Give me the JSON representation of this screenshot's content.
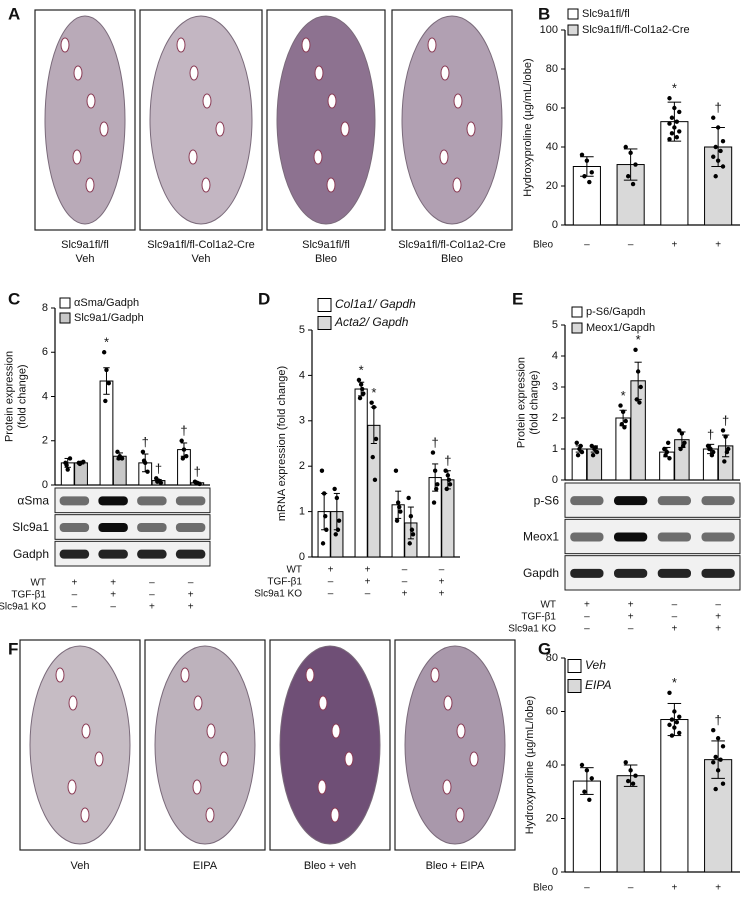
{
  "image_panels": [
    {
      "letter": "A",
      "captions": [
        [
          "Slc9a1fl/fl",
          "Veh"
        ],
        [
          "Slc9a1fl/fl-Col1a2-Cre",
          "Veh"
        ],
        [
          "Slc9a1fl/fl",
          "Bleo"
        ],
        [
          "Slc9a1fl/fl-Col1a2-Cre",
          "Bleo"
        ]
      ]
    },
    {
      "letter": "F",
      "captions": [
        [
          "Veh"
        ],
        [
          "EIPA"
        ],
        [
          "Bleo + veh"
        ],
        [
          "Bleo + EIPA"
        ]
      ]
    }
  ],
  "chart_data": [
    {
      "type": "bar",
      "panel": "B",
      "ylabel": [
        "Hydroxyproline (µg/mL/lobe)"
      ],
      "ylim": [
        0,
        100
      ],
      "yticks": [
        0,
        20,
        40,
        60,
        80,
        100
      ],
      "series": [
        {
          "name": "Slc9a1fl/fl",
          "color": "#ffffff",
          "values": [
            30,
            null,
            53,
            null
          ],
          "errors": [
            5,
            null,
            10,
            null
          ],
          "points": [
            [
              36,
              33,
              27,
              25,
              22
            ],
            null,
            [
              65,
              60,
              58,
              55,
              53,
              52,
              50,
              48,
              47,
              45,
              44
            ],
            null
          ],
          "markers": [
            null,
            null,
            "*",
            null
          ]
        },
        {
          "name": "Slc9a1fl/fl-Col1a2-Cre",
          "color": "#d9d9d9",
          "values": [
            null,
            31,
            null,
            40
          ],
          "errors": [
            null,
            8,
            null,
            10
          ],
          "points": [
            null,
            [
              40,
              37,
              31,
              25,
              21
            ],
            null,
            [
              55,
              50,
              43,
              40,
              38,
              35,
              33,
              30,
              25
            ]
          ],
          "markers": [
            null,
            null,
            null,
            "†"
          ]
        }
      ],
      "conditions": [
        {
          "label": "Bleo",
          "values": [
            "–",
            "–",
            "+",
            "+"
          ]
        }
      ]
    },
    {
      "type": "bar",
      "panel": "C",
      "ylabel": [
        "Protein expression",
        "(fold change)"
      ],
      "ylim": [
        0,
        8
      ],
      "yticks": [
        0,
        2,
        4,
        6,
        8
      ],
      "series": [
        {
          "name": "αSma/Gadph",
          "color": "#ffffff",
          "values": [
            1.0,
            4.7,
            1.0,
            1.6
          ],
          "errors": [
            0.2,
            0.6,
            0.4,
            0.3
          ],
          "points": [
            [
              1.0,
              0.7,
              1.2,
              0.9
            ],
            [
              6.0,
              5.2,
              4.6,
              3.8
            ],
            [
              1.5,
              1.0,
              0.6,
              1.1
            ],
            [
              2.0,
              1.6,
              1.3,
              1.2
            ]
          ],
          "markers": [
            null,
            "*",
            "†",
            "†"
          ]
        },
        {
          "name": "Slc9a1/Gadph",
          "color": "#c8c8c8",
          "values": [
            1.0,
            1.3,
            0.2,
            0.1
          ],
          "errors": [
            0.05,
            0.15,
            0.05,
            0.03
          ],
          "points": [
            [
              1.0,
              1.0,
              1.05,
              0.95
            ],
            [
              1.5,
              1.3,
              1.2,
              1.2
            ],
            [
              0.3,
              0.2,
              0.1,
              0.15
            ],
            [
              0.15,
              0.1,
              0.05,
              0.1
            ]
          ],
          "markers": [
            null,
            null,
            "†",
            "†"
          ]
        }
      ],
      "blots": [
        "αSma",
        "Slc9a1",
        "Gadph"
      ],
      "conditions": [
        {
          "label": "WT",
          "values": [
            "+",
            "+",
            "–",
            "–"
          ]
        },
        {
          "label": "TGF-β1",
          "values": [
            "–",
            "+",
            "–",
            "+"
          ]
        },
        {
          "label": "Slc9a1 KO",
          "values": [
            "–",
            "–",
            "+",
            "+"
          ]
        }
      ]
    },
    {
      "type": "bar",
      "panel": "D",
      "ylabel": [
        "mRNA expression (fold change)"
      ],
      "ylim": [
        0,
        5
      ],
      "yticks": [
        0,
        1,
        2,
        3,
        4,
        5
      ],
      "series": [
        {
          "name": "Col1a1/ Gapdh",
          "color": "#ffffff",
          "values": [
            1.0,
            3.7,
            1.15,
            1.75
          ],
          "errors": [
            0.4,
            0.15,
            0.3,
            0.3
          ],
          "points": [
            [
              1.9,
              1.4,
              0.6,
              0.3,
              0.9
            ],
            [
              3.9,
              3.8,
              3.6,
              3.5,
              3.7
            ],
            [
              1.9,
              1.2,
              1.0,
              0.8,
              1.1
            ],
            [
              2.3,
              1.9,
              1.6,
              1.2,
              1.5
            ]
          ],
          "markers": [
            null,
            "*",
            null,
            "†"
          ]
        },
        {
          "name": "Acta2/ Gapdh",
          "color": "#d9d9d9",
          "values": [
            1.0,
            2.9,
            0.75,
            1.7
          ],
          "errors": [
            0.4,
            0.4,
            0.35,
            0.2
          ],
          "points": [
            [
              1.5,
              1.3,
              0.8,
              0.5,
              0.6
            ],
            [
              3.4,
              3.3,
              2.6,
              2.2,
              1.7
            ],
            [
              1.3,
              0.9,
              0.5,
              0.3,
              0.6
            ],
            [
              1.9,
              1.8,
              1.6,
              1.5,
              1.7
            ]
          ],
          "markers": [
            null,
            "*",
            null,
            "†"
          ]
        }
      ],
      "conditions": [
        {
          "label": "WT",
          "values": [
            "+",
            "+",
            "–",
            "–"
          ]
        },
        {
          "label": "TGF-β1",
          "values": [
            "–",
            "+",
            "–",
            "+"
          ]
        },
        {
          "label": "Slc9a1 KO",
          "values": [
            "–",
            "–",
            "+",
            "+"
          ]
        }
      ]
    },
    {
      "type": "bar",
      "panel": "E",
      "ylabel": [
        "Protein expression",
        "(fold change)"
      ],
      "ylim": [
        0,
        5
      ],
      "yticks": [
        0,
        1,
        2,
        3,
        4,
        5
      ],
      "series": [
        {
          "name": "p-S6/Gapdh",
          "color": "#ffffff",
          "values": [
            1.0,
            2.0,
            0.9,
            1.0
          ],
          "errors": [
            0.1,
            0.25,
            0.15,
            0.15
          ],
          "points": [
            [
              1.2,
              1.0,
              0.9,
              0.8,
              1.1
            ],
            [
              2.4,
              2.2,
              1.9,
              1.8,
              1.7
            ],
            [
              1.0,
              0.9,
              0.7,
              0.8,
              1.2
            ],
            [
              1.1,
              1.0,
              0.9,
              1.0,
              0.8
            ]
          ],
          "markers": [
            null,
            "*",
            null,
            "†"
          ]
        },
        {
          "name": "Meox1/Gapdh",
          "color": "#d9d9d9",
          "values": [
            1.0,
            3.2,
            1.3,
            1.1
          ],
          "errors": [
            0.1,
            0.6,
            0.25,
            0.35
          ],
          "points": [
            [
              1.1,
              1.0,
              0.9,
              0.8,
              1.05
            ],
            [
              4.2,
              3.5,
              3.0,
              2.6,
              2.5
            ],
            [
              1.6,
              1.5,
              1.2,
              1.0,
              1.1
            ],
            [
              1.6,
              1.4,
              1.0,
              0.6,
              0.9
            ]
          ],
          "markers": [
            null,
            "*",
            null,
            "†"
          ]
        }
      ],
      "blots": [
        "p-S6",
        "Meox1",
        "Gapdh"
      ],
      "conditions": [
        {
          "label": "WT",
          "values": [
            "+",
            "+",
            "–",
            "–"
          ]
        },
        {
          "label": "TGF-β1",
          "values": [
            "–",
            "+",
            "–",
            "+"
          ]
        },
        {
          "label": "Slc9a1 KO",
          "values": [
            "–",
            "–",
            "+",
            "+"
          ]
        }
      ]
    },
    {
      "type": "bar",
      "panel": "G",
      "ylabel": [
        "Hydroxyproline (µg/mL/lobe)"
      ],
      "ylim": [
        0,
        80
      ],
      "yticks": [
        0,
        20,
        40,
        60,
        80
      ],
      "series": [
        {
          "name": "Veh",
          "color": "#ffffff",
          "values": [
            34,
            null,
            57,
            null
          ],
          "errors": [
            5,
            null,
            6,
            null
          ],
          "points": [
            [
              40,
              38,
              35,
              30,
              27
            ],
            null,
            [
              67,
              60,
              58,
              57,
              56,
              55,
              54,
              52,
              51
            ],
            null
          ],
          "markers": [
            null,
            null,
            "*",
            null
          ]
        },
        {
          "name": "EIPA",
          "color": "#d9d9d9",
          "values": [
            null,
            36,
            null,
            42
          ],
          "errors": [
            null,
            4,
            null,
            7
          ],
          "points": [
            null,
            [
              41,
              38,
              36,
              34,
              33
            ],
            null,
            [
              53,
              50,
              47,
              43,
              42,
              41,
              38,
              33,
              31
            ]
          ],
          "markers": [
            null,
            null,
            null,
            "†"
          ]
        }
      ],
      "conditions": [
        {
          "label": "Bleo",
          "values": [
            "–",
            "–",
            "+",
            "+"
          ]
        }
      ]
    }
  ]
}
